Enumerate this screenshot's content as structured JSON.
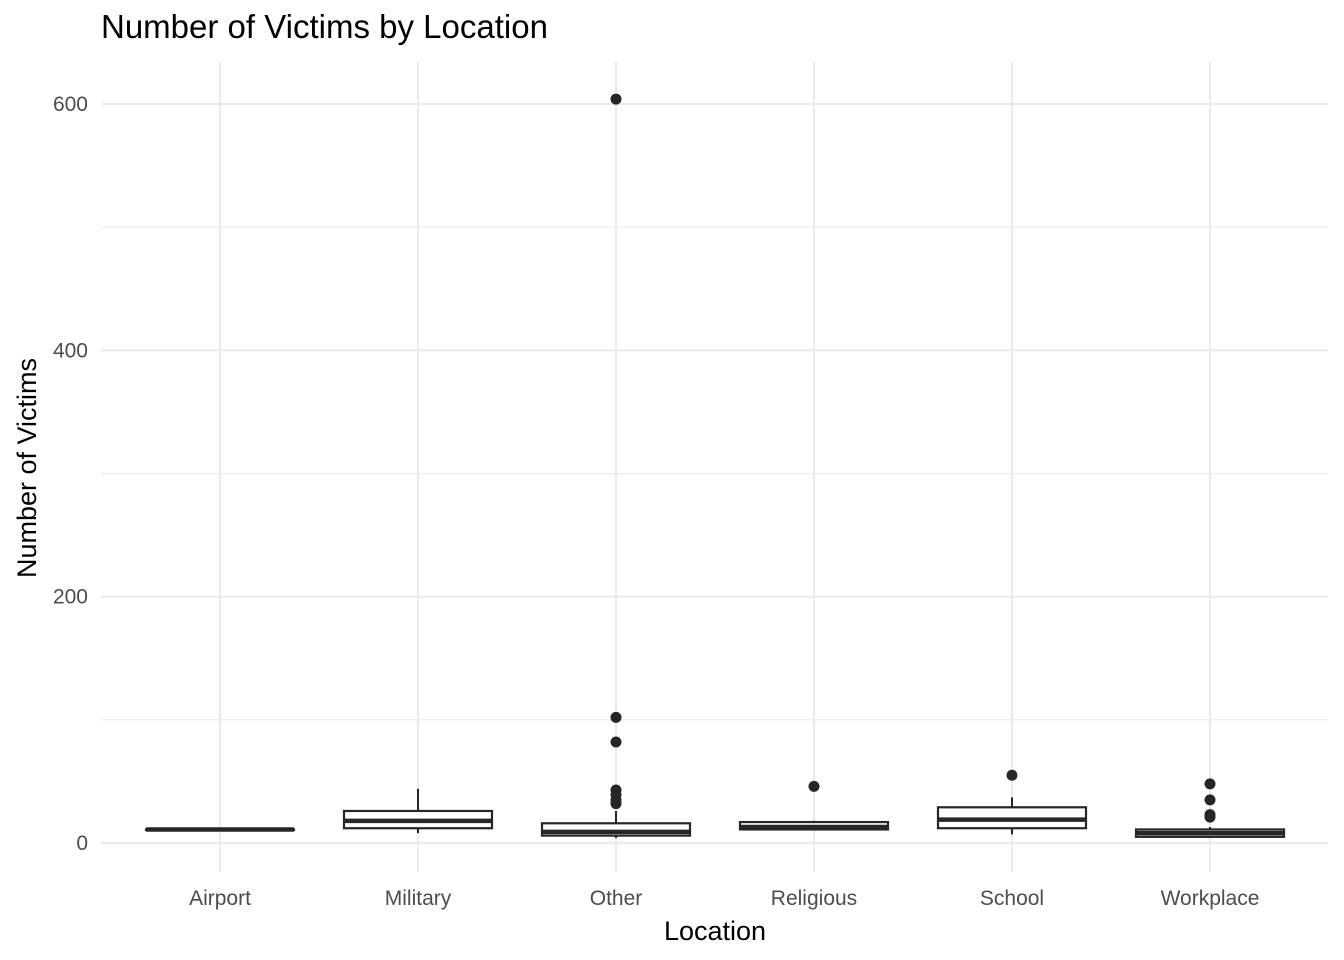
{
  "chart_data": {
    "type": "boxplot",
    "title": "Number of Victims by Location",
    "xlabel": "Location",
    "ylabel": "Number of Victims",
    "categories": [
      "Airport",
      "Military",
      "Other",
      "Religious",
      "School",
      "Workplace"
    ],
    "yticks": [
      0,
      200,
      400,
      600
    ],
    "ylim": [
      -25,
      635
    ],
    "grid": true,
    "boxes": [
      {
        "category": "Airport",
        "whisker_low": 11,
        "q1": 11,
        "median": 11,
        "q3": 11,
        "whisker_high": 11,
        "outliers": []
      },
      {
        "category": "Military",
        "whisker_low": 8,
        "q1": 12,
        "median": 18,
        "q3": 26,
        "whisker_high": 44,
        "outliers": []
      },
      {
        "category": "Other",
        "whisker_low": 4,
        "q1": 6,
        "median": 9,
        "q3": 16,
        "whisker_high": 26,
        "outliers": [
          32,
          35,
          39,
          43,
          82,
          102,
          604
        ]
      },
      {
        "category": "Religious",
        "whisker_low": 10,
        "q1": 11,
        "median": 13,
        "q3": 17,
        "whisker_high": 18,
        "outliers": [
          46
        ]
      },
      {
        "category": "School",
        "whisker_low": 7,
        "q1": 12,
        "median": 19,
        "q3": 29,
        "whisker_high": 37,
        "outliers": [
          55
        ]
      },
      {
        "category": "Workplace",
        "whisker_low": 4,
        "q1": 5,
        "median": 8,
        "q3": 11,
        "whisker_high": 13,
        "outliers": [
          21,
          23,
          35,
          48
        ]
      }
    ]
  },
  "colors": {
    "grid": "#ebebeb",
    "box_stroke": "#262626",
    "tick_text": "#4d4d4d",
    "title_text": "#000000"
  }
}
